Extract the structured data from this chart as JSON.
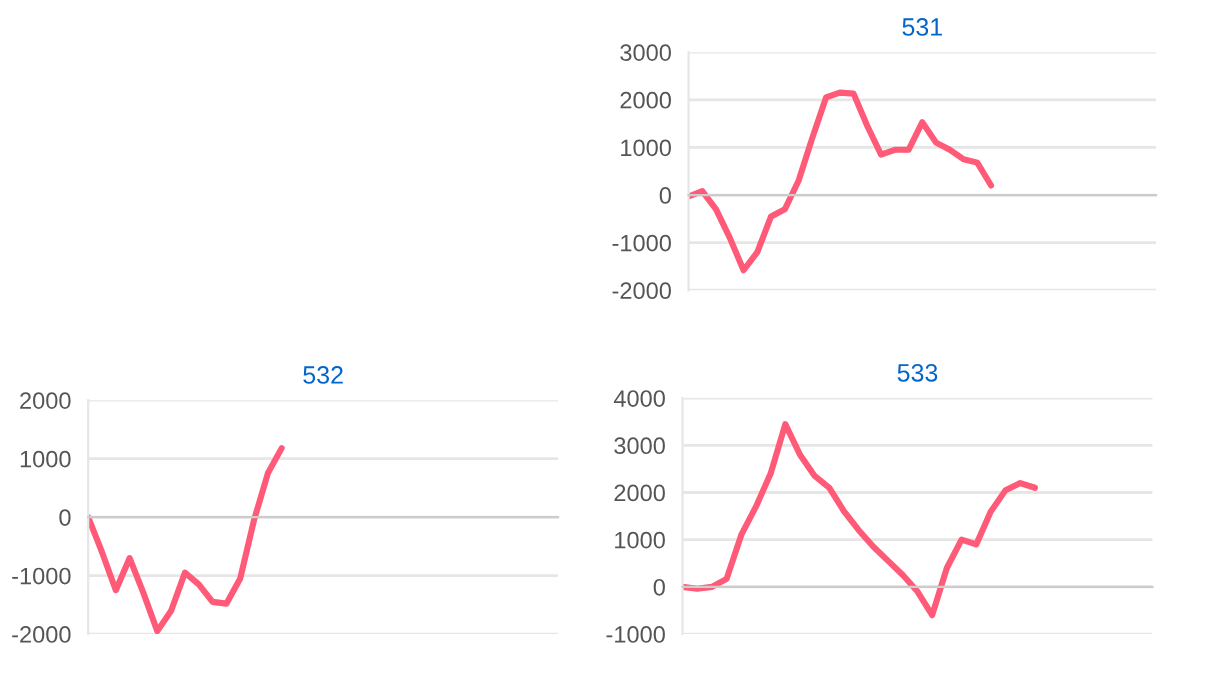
{
  "chart_data": [
    {
      "type": "line",
      "title": "531",
      "categories": [
        null,
        null,
        null,
        null,
        null,
        null,
        null,
        null,
        null,
        null,
        null,
        null,
        null,
        null,
        null,
        null,
        null,
        null,
        null,
        null,
        null,
        null,
        null,
        null,
        null,
        null,
        null,
        null,
        null,
        null,
        null,
        null,
        null,
        null,
        null
      ],
      "series": [
        {
          "color": "#ff5a78",
          "values": [
            -30,
            80,
            -300,
            -900,
            -1580,
            -1200,
            -450,
            -300,
            300,
            1200,
            2050,
            2150,
            2130,
            1450,
            850,
            950,
            950,
            1530,
            1100,
            950,
            750,
            680,
            200,
            null,
            null,
            null,
            null,
            null,
            null,
            null,
            null,
            null,
            null,
            null,
            null
          ]
        }
      ],
      "ylim": [
        -2000,
        3000
      ],
      "yticks": [
        -2000,
        -1000,
        0,
        1000,
        2000,
        3000
      ],
      "grid": "y",
      "tick_labels": "y",
      "marker": "none",
      "line_style": "solid",
      "legend": false
    },
    {
      "type": "line",
      "title": "532",
      "categories": [
        null,
        null,
        null,
        null,
        null,
        null,
        null,
        null,
        null,
        null,
        null,
        null,
        null,
        null,
        null,
        null,
        null,
        null,
        null,
        null,
        null,
        null,
        null,
        null,
        null,
        null,
        null,
        null,
        null,
        null,
        null,
        null,
        null,
        null,
        null
      ],
      "series": [
        {
          "color": "#ff5a78",
          "values": [
            0,
            -600,
            -1250,
            -700,
            -1300,
            -1950,
            -1600,
            -950,
            -1150,
            -1450,
            -1480,
            -1050,
            -50,
            750,
            1180,
            null,
            null,
            null,
            null,
            null,
            null,
            null,
            null,
            null,
            null,
            null,
            null,
            null,
            null,
            null,
            null,
            null,
            null,
            null,
            null
          ]
        }
      ],
      "ylim": [
        -2000,
        2000
      ],
      "yticks": [
        -2000,
        -1000,
        0,
        1000,
        2000
      ],
      "grid": "y",
      "tick_labels": "y",
      "marker": "none",
      "line_style": "solid",
      "legend": false
    },
    {
      "type": "line",
      "title": "533",
      "categories": [
        null,
        null,
        null,
        null,
        null,
        null,
        null,
        null,
        null,
        null,
        null,
        null,
        null,
        null,
        null,
        null,
        null,
        null,
        null,
        null,
        null,
        null,
        null,
        null,
        null,
        null,
        null,
        null,
        null,
        null,
        null,
        null,
        null
      ],
      "series": [
        {
          "color": "#ff5a78",
          "values": [
            0,
            -40,
            0,
            170,
            1100,
            1700,
            2400,
            3450,
            2800,
            2350,
            2100,
            1600,
            1200,
            850,
            550,
            250,
            -100,
            -600,
            400,
            1000,
            900,
            1600,
            2050,
            2200,
            2100,
            null,
            null,
            null,
            null,
            null,
            null,
            null,
            null
          ]
        }
      ],
      "ylim": [
        -1000,
        4000
      ],
      "yticks": [
        -1000,
        0,
        1000,
        2000,
        3000,
        4000
      ],
      "grid": "y",
      "tick_labels": "y",
      "marker": "none",
      "line_style": "solid",
      "legend": false
    }
  ]
}
